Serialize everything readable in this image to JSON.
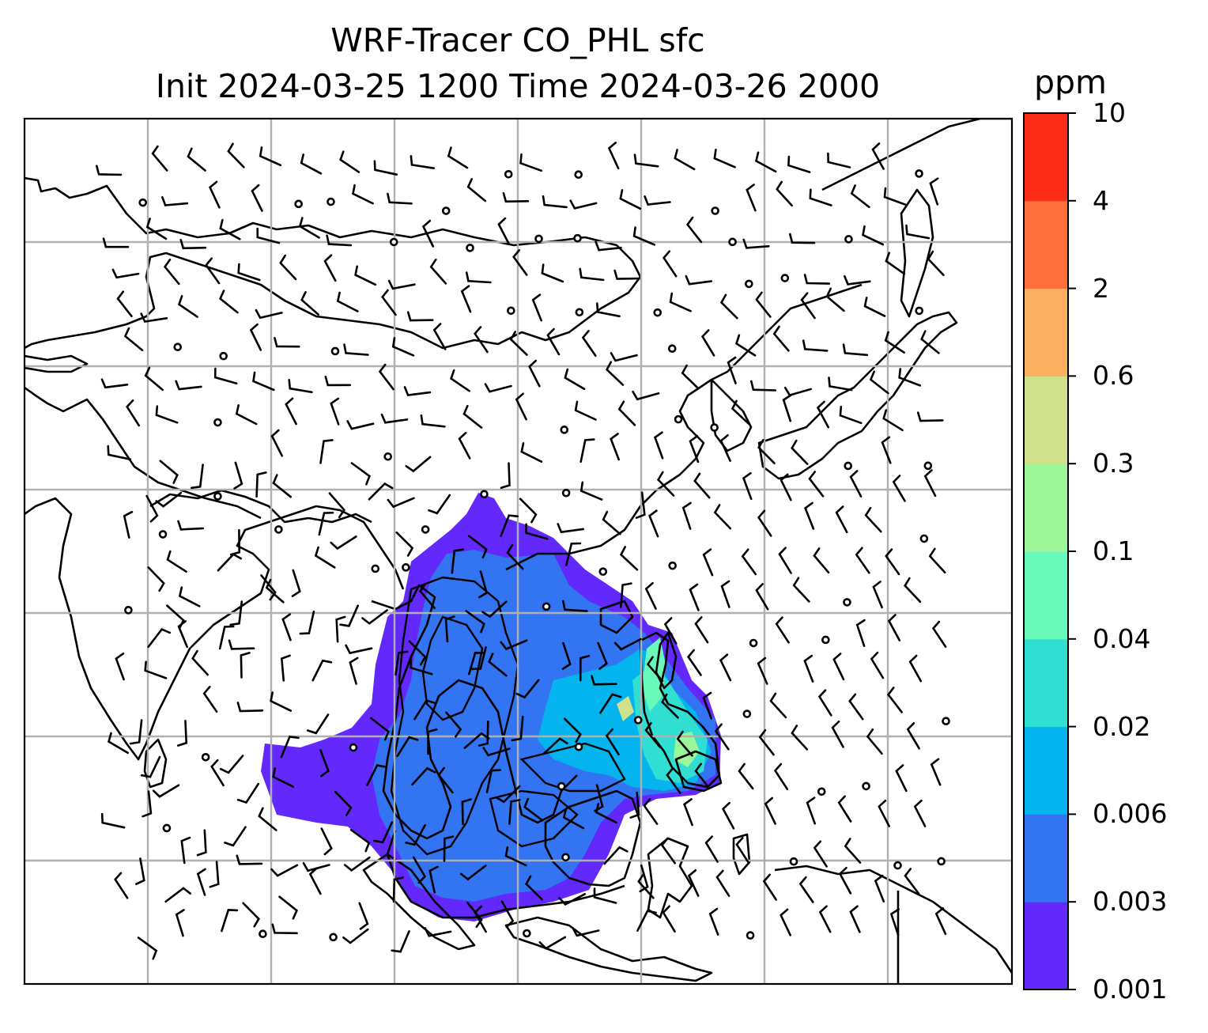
{
  "title": {
    "line1": "WRF-Tracer CO_PHL sfc",
    "line2": "Init 2024-03-25 1200 Time 2024-03-26 2000"
  },
  "colorbar": {
    "unit": "ppm",
    "tick_labels": [
      "0.001",
      "0.003",
      "0.006",
      "0.02",
      "0.04",
      "0.1",
      "0.3",
      "0.6",
      "2",
      "4",
      "10"
    ],
    "colors": [
      "#6328fb",
      "#3274f1",
      "#03b4ee",
      "#30ded2",
      "#69f9bb",
      "#9bf799",
      "#cfe18a",
      "#fbaf60",
      "#fd6f3d",
      "#fd2c18"
    ]
  },
  "map": {
    "field": "CO_PHL surface tracer concentration",
    "overlays": [
      "coastlines",
      "lat-lon gridlines",
      "wind barbs",
      "calm wind circles",
      "concentration contours"
    ]
  }
}
